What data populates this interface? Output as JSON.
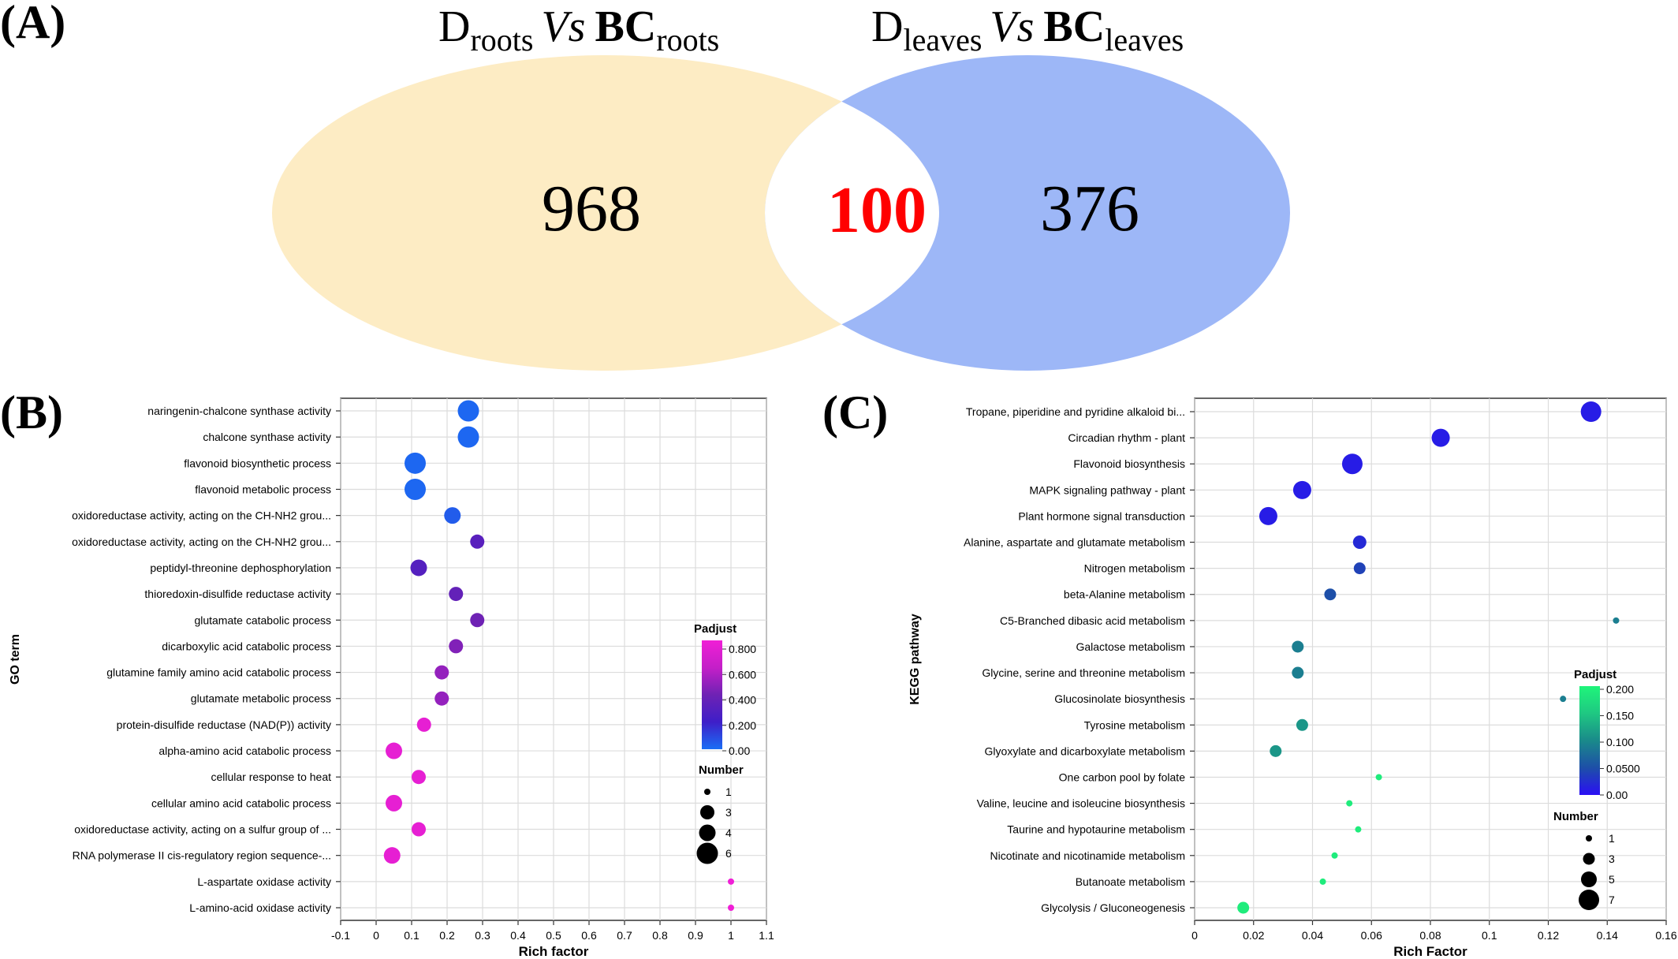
{
  "panel_a": {
    "label": "(A)",
    "left_title": {
      "main": "D",
      "sub": "roots",
      "vs": "Vs",
      "bc": "BC",
      "bc_sub": "roots"
    },
    "right_title": {
      "main": "D",
      "sub": "leaves",
      "vs": "Vs",
      "bc": "BC",
      "bc_sub": "leaves"
    },
    "left_only": "968",
    "overlap": "100",
    "right_only": "376",
    "colors": {
      "left": "#fdecc4",
      "right": "#9db7f7",
      "overlap_fill": "#ffffff",
      "overlap_text": "#ff0000"
    }
  },
  "panel_b": {
    "label": "(B)"
  },
  "panel_c": {
    "label": "(C)"
  },
  "chart_data": [
    {
      "type": "scatter",
      "panel": "A",
      "chart_kind": "venn",
      "sets": [
        "Droots Vs BCroots",
        "Dleaves Vs BCleaves"
      ],
      "values": {
        "left_only": 968,
        "intersection": 100,
        "right_only": 376
      }
    },
    {
      "type": "scatter",
      "panel": "B",
      "xlabel": "Rich factor",
      "ylabel": "GO term",
      "xlim": [
        -0.1,
        1.1
      ],
      "xticks": [
        "-0.1",
        "0",
        "0.1",
        "0.2",
        "0.3",
        "0.4",
        "0.5",
        "0.6",
        "0.7",
        "0.8",
        "0.9",
        "1",
        "1.1"
      ],
      "grid": true,
      "legend_color_title": "Padjust",
      "color_ticks": [
        "0.800",
        "0.600",
        "0.400",
        "0.200",
        "0.00"
      ],
      "color_range": [
        0,
        0.9
      ],
      "colormap": [
        "#1a6ef5",
        "#3e1ec8",
        "#6e22b4",
        "#c41fc8",
        "#f01fd6"
      ],
      "legend_size_title": "Number",
      "size_legend": [
        "1",
        "3",
        "4",
        "6"
      ],
      "size_legend_values": [
        1,
        3,
        4,
        6
      ],
      "categories": [
        "naringenin-chalcone synthase activity",
        "chalcone synthase activity",
        "flavonoid biosynthetic process",
        "flavonoid metabolic process",
        "oxidoreductase activity, acting on the CH-NH2 grou...",
        "oxidoreductase activity, acting on the CH-NH2 grou...",
        "peptidyl-threonine dephosphorylation",
        "thioredoxin-disulfide reductase activity",
        "glutamate catabolic process",
        "dicarboxylic acid catabolic process",
        "glutamine family amino acid catabolic process",
        "glutamate metabolic process",
        "protein-disulfide reductase (NAD(P)) activity",
        "alpha-amino acid catabolic process",
        "cellular response to heat",
        "cellular amino acid catabolic process",
        "oxidoreductase activity, acting on a sulfur group of ...",
        "RNA polymerase II cis-regulatory region sequence-...",
        "L-aspartate oxidase activity",
        "L-amino-acid oxidase activity"
      ],
      "x": [
        0.26,
        0.26,
        0.11,
        0.11,
        0.215,
        0.285,
        0.12,
        0.225,
        0.285,
        0.225,
        0.185,
        0.185,
        0.135,
        0.05,
        0.12,
        0.05,
        0.12,
        0.045,
        1.0,
        1.0
      ],
      "size": [
        6,
        6,
        6,
        6,
        4,
        3,
        4,
        3,
        3,
        3,
        3,
        3,
        3,
        4,
        3,
        4,
        3,
        4,
        1,
        1
      ],
      "padjust": [
        0.02,
        0.02,
        0.02,
        0.02,
        0.05,
        0.35,
        0.33,
        0.4,
        0.45,
        0.5,
        0.55,
        0.55,
        0.85,
        0.85,
        0.85,
        0.85,
        0.85,
        0.85,
        0.9,
        0.9
      ]
    },
    {
      "type": "scatter",
      "panel": "C",
      "xlabel": "Rich Factor",
      "ylabel": "KEGG pathway",
      "xlim": [
        0,
        0.16
      ],
      "xticks": [
        "0",
        "0.02",
        "0.04",
        "0.06",
        "0.08",
        "0.1",
        "0.12",
        "0.14",
        "0.16"
      ],
      "grid": true,
      "legend_color_title": "Padjust",
      "color_ticks": [
        "0.200",
        "0.150",
        "0.100",
        "0.0500",
        "0.00"
      ],
      "color_range": [
        0,
        0.2
      ],
      "colormap": [
        "#2a0ff5",
        "#1d4fa8",
        "#1a8a8a",
        "#1fc882",
        "#1ff57a"
      ],
      "legend_size_title": "Number",
      "size_legend": [
        "1",
        "3",
        "5",
        "7"
      ],
      "size_legend_values": [
        1,
        3,
        5,
        7
      ],
      "categories": [
        "Tropane, piperidine and pyridine alkaloid bi...",
        "Circadian rhythm - plant",
        "Flavonoid biosynthesis",
        "MAPK signaling pathway - plant",
        "Plant hormone signal transduction",
        "Alanine, aspartate and glutamate metabolism",
        "Nitrogen metabolism",
        "beta-Alanine metabolism",
        "C5-Branched dibasic acid metabolism",
        "Galactose metabolism",
        "Glycine, serine and threonine metabolism",
        "Glucosinolate biosynthesis",
        "Tyrosine metabolism",
        "Glyoxylate and dicarboxylate metabolism",
        "One carbon pool by folate",
        "Valine, leucine and isoleucine biosynthesis",
        "Taurine and hypotaurine metabolism",
        "Nicotinate and nicotinamide metabolism",
        "Butanoate metabolism",
        "Glycolysis / Gluconeogenesis"
      ],
      "x": [
        0.1345,
        0.0835,
        0.0535,
        0.0365,
        0.025,
        0.056,
        0.056,
        0.046,
        0.143,
        0.035,
        0.035,
        0.125,
        0.0365,
        0.0275,
        0.0625,
        0.0525,
        0.0555,
        0.0475,
        0.0435,
        0.0165
      ],
      "size": [
        7,
        6,
        7,
        6,
        6,
        4,
        3,
        3,
        1,
        3,
        3,
        1,
        3,
        3,
        1,
        1,
        1,
        1,
        1,
        3
      ],
      "padjust": [
        0.01,
        0.01,
        0.01,
        0.01,
        0.01,
        0.02,
        0.04,
        0.05,
        0.09,
        0.09,
        0.09,
        0.09,
        0.11,
        0.11,
        0.19,
        0.19,
        0.19,
        0.19,
        0.19,
        0.19
      ]
    }
  ]
}
